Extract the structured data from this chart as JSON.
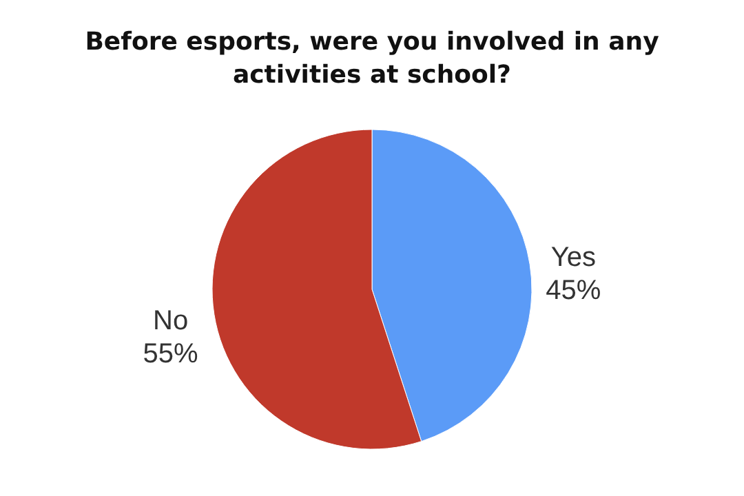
{
  "chart_data": {
    "type": "pie",
    "title": "Before esports, were you involved in any activities at school?",
    "categories": [
      "Yes",
      "No"
    ],
    "values": [
      45,
      55
    ],
    "colors": [
      "#5b9bf7",
      "#c0392b"
    ],
    "value_labels": [
      "45%",
      "55%"
    ],
    "legend": false
  }
}
